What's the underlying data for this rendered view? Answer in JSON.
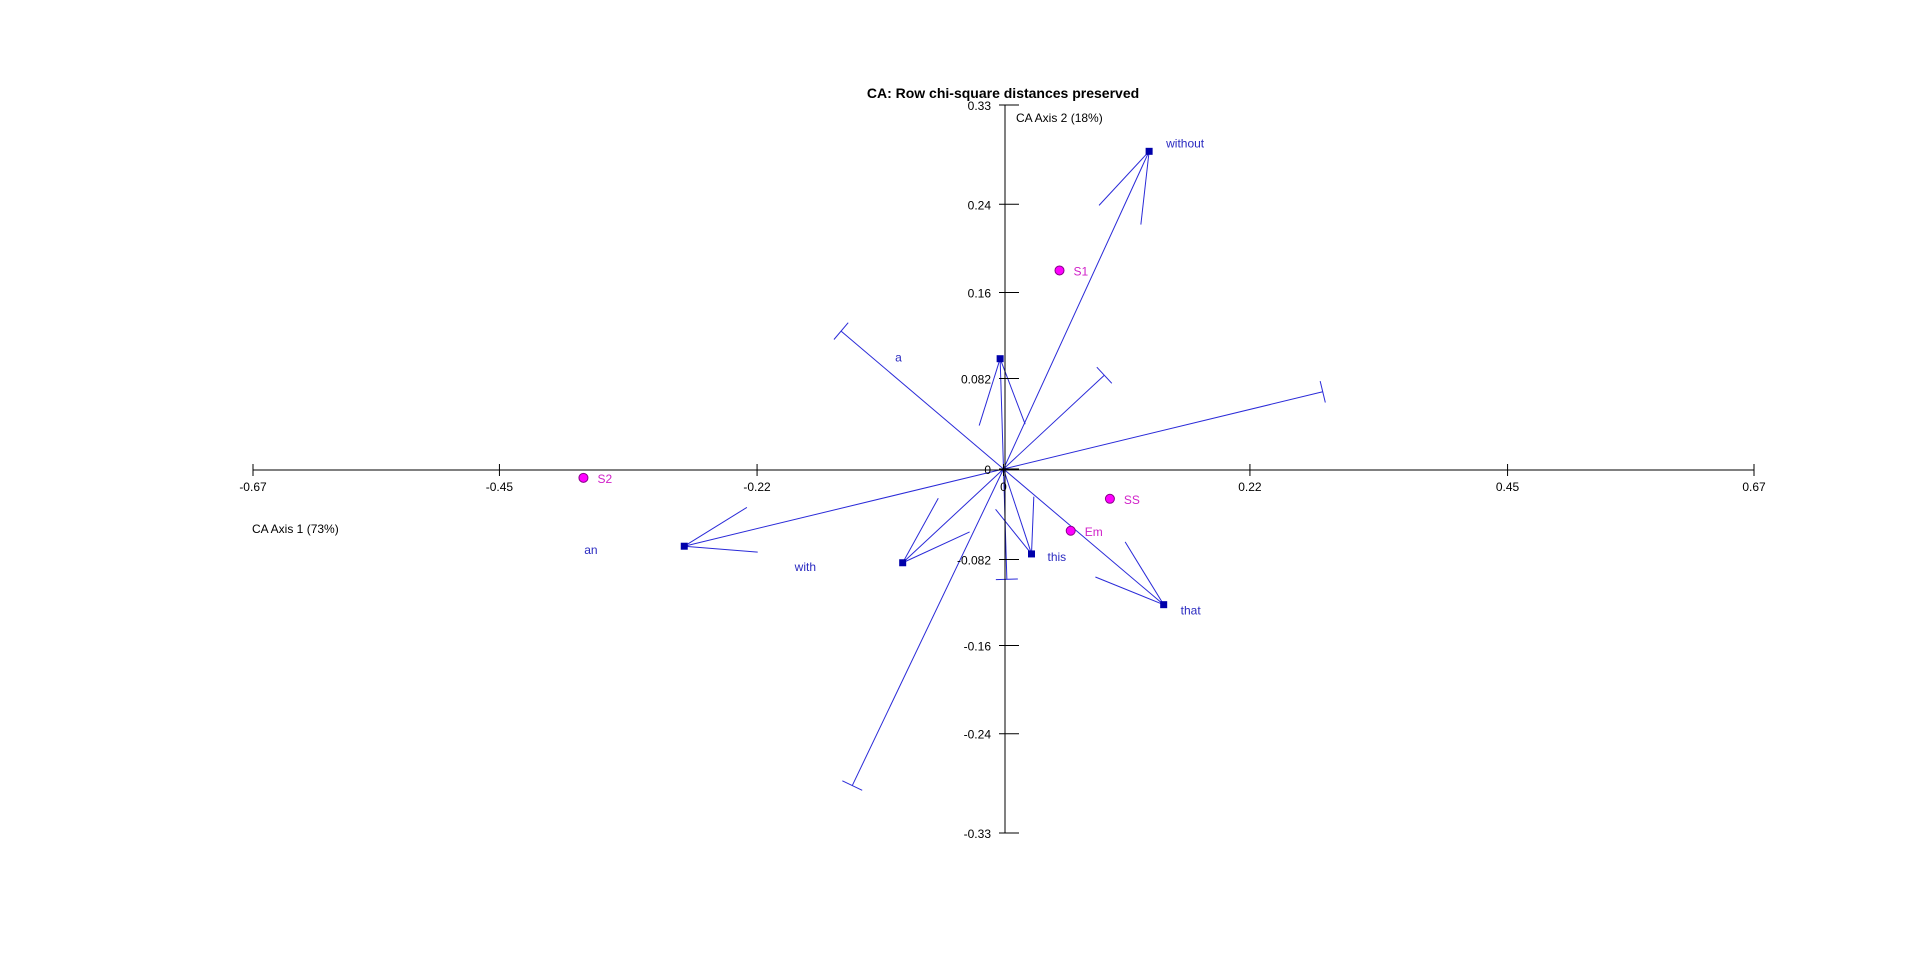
{
  "chart_data": {
    "type": "scatter",
    "title": "CA: Row chi-square distances preserved",
    "xlabel": "CA Axis  1 (73%)",
    "ylabel": "CA Axis  2 (18%)",
    "xlim": [
      -0.67,
      0.67
    ],
    "ylim": [
      -0.33,
      0.33
    ],
    "x_ticks": [
      -0.67,
      -0.45,
      -0.22,
      0,
      0.22,
      0.45,
      0.67
    ],
    "x_tick_labels": [
      "-0.67",
      "-0.45",
      "-0.22",
      "0",
      "0.22",
      "0.45",
      "0.67"
    ],
    "y_ticks": [
      0.33,
      0.24,
      0.16,
      0.082,
      0,
      -0.082,
      -0.16,
      -0.24,
      -0.33
    ],
    "y_tick_labels": [
      "0.33",
      "0.24",
      "0.16",
      "0.082",
      "0",
      "-0.082",
      "-0.16",
      "-0.24",
      "-0.33"
    ],
    "grid": false,
    "colors": {
      "rows": "#ff00ff",
      "row_text": "#d020c8",
      "columns": "#0000aa",
      "col_text": "#2a2ac0",
      "biplot": "#2a2ad8",
      "axes": "#000000"
    },
    "series": [
      {
        "name": "",
        "marker": "circle",
        "points": [
          {
            "label": "S1",
            "x": 0.05,
            "y": 0.18
          },
          {
            "label": "S2",
            "x": -0.375,
            "y": -0.008
          },
          {
            "label": "SS",
            "x": 0.095,
            "y": -0.027
          },
          {
            "label": "Em",
            "x": 0.06,
            "y": -0.056
          }
        ]
      },
      {
        "name": "",
        "marker": "square",
        "points": [
          {
            "label": "without",
            "x": 0.13,
            "y": 0.288
          },
          {
            "label": "a",
            "x": -0.003,
            "y": 0.1
          },
          {
            "label": "an",
            "x": -0.285,
            "y": -0.07
          },
          {
            "label": "with",
            "x": -0.09,
            "y": -0.085
          },
          {
            "label": "this",
            "x": 0.025,
            "y": -0.077
          },
          {
            "label": "that",
            "x": 0.143,
            "y": -0.123
          }
        ]
      }
    ],
    "biplot_rays": [
      {
        "x": 0.13,
        "y": 0.288,
        "cap": false
      },
      {
        "x": -0.003,
        "y": 0.1,
        "cap": false
      },
      {
        "x": -0.285,
        "y": -0.07,
        "cap": false
      },
      {
        "x": -0.09,
        "y": -0.085,
        "cap": false
      },
      {
        "x": 0.025,
        "y": -0.077,
        "cap": false
      },
      {
        "x": 0.143,
        "y": -0.123,
        "cap": false
      },
      {
        "x": -0.145,
        "y": 0.125,
        "cap": true
      },
      {
        "x": 0.285,
        "y": 0.07,
        "cap": true
      },
      {
        "x": 0.09,
        "y": 0.085,
        "cap": true
      },
      {
        "x": -0.135,
        "y": -0.287,
        "cap": true
      },
      {
        "x": 0.003,
        "y": -0.1,
        "cap": true
      }
    ]
  }
}
